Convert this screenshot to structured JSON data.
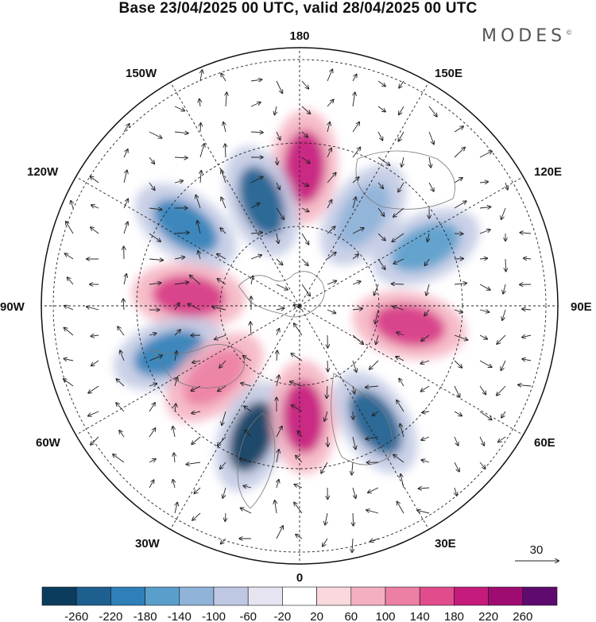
{
  "title": "Base 23/04/2025 00 UTC, valid 28/04/2025 00 UTC",
  "logo": "MODES",
  "logo_mark": "©",
  "longitude_labels": {
    "top": "180",
    "bottom": "0",
    "left": "90W",
    "right": "90E",
    "upper_left_1": "150W",
    "upper_left_2": "120W",
    "upper_right_1": "150E",
    "upper_right_2": "120E",
    "lower_left_1": "60W",
    "lower_left_2": "30W",
    "lower_right_1": "60E",
    "lower_right_2": "30E"
  },
  "wind_reference": {
    "label": "30"
  },
  "colorbar": {
    "colors": [
      "#0b3c5d",
      "#1d5f8f",
      "#2f7fb8",
      "#5a9fcc",
      "#8fb3d9",
      "#bfc8e3",
      "#e6e4f0",
      "#ffffff",
      "#f9d9dd",
      "#f4b0c0",
      "#ec7fa4",
      "#e04c8c",
      "#c51b7d",
      "#9e0c72",
      "#5e0a6e"
    ],
    "ticks": [
      "-260",
      "-220",
      "-180",
      "-140",
      "-100",
      "-60",
      "-20",
      "20",
      "60",
      "100",
      "140",
      "180",
      "220",
      "260"
    ]
  },
  "anomaly_centers": [
    {
      "lon": 178,
      "color": "#c51b7d",
      "sign": "positive"
    },
    {
      "lon": -160,
      "color": "#1d5f8f",
      "sign": "negative"
    },
    {
      "lon": -125,
      "color": "#2f7fb8",
      "sign": "negative"
    },
    {
      "lon": -95,
      "color": "#d63a86",
      "sign": "positive"
    },
    {
      "lon": -70,
      "color": "#2f7fb8",
      "sign": "negative"
    },
    {
      "lon": -50,
      "color": "#ec7fa4",
      "sign": "positive"
    },
    {
      "lon": -20,
      "color": "#0b3c5d",
      "sign": "negative"
    },
    {
      "lon": 2,
      "color": "#c51b7d",
      "sign": "positive"
    },
    {
      "lon": 33,
      "color": "#1d5f8f",
      "sign": "negative"
    },
    {
      "lon": 80,
      "color": "#d63a86",
      "sign": "positive"
    },
    {
      "lon": 115,
      "color": "#5a9fcc",
      "sign": "negative"
    },
    {
      "lon": 145,
      "color": "#8fb3d9",
      "sign": "negative"
    }
  ]
}
